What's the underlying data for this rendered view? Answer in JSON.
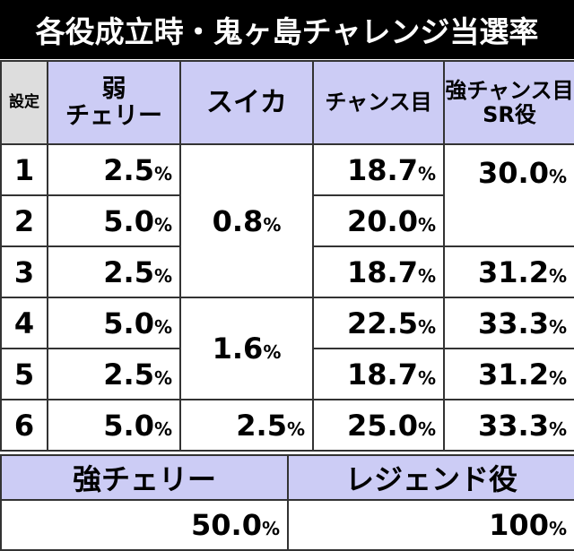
{
  "title": "各役成立時・鬼ヶ島チャレンジ当選率",
  "headers": {
    "setting": "設定",
    "weak_cherry_1": "弱",
    "weak_cherry_2": "チェリー",
    "suika": "スイカ",
    "chance_me": "チャンス目",
    "strong_chance_1": "強チャンス目",
    "strong_chance_2": "SR役"
  },
  "pct": "%",
  "rows": [
    {
      "setting": "1",
      "weak_cherry": "2.5",
      "chance_me": "18.7"
    },
    {
      "setting": "2",
      "weak_cherry": "5.0",
      "chance_me": "20.0"
    },
    {
      "setting": "3",
      "weak_cherry": "2.5",
      "chance_me": "18.7"
    },
    {
      "setting": "4",
      "weak_cherry": "5.0",
      "chance_me": "22.5"
    },
    {
      "setting": "5",
      "weak_cherry": "2.5",
      "chance_me": "18.7"
    },
    {
      "setting": "6",
      "weak_cherry": "5.0",
      "chance_me": "25.0"
    }
  ],
  "suika_groups": [
    "0.8",
    "1.6",
    "2.5"
  ],
  "strong_chance_values": [
    "30.0",
    "31.2",
    "33.3",
    "31.2",
    "33.3"
  ],
  "bottom": {
    "strong_cherry_label": "強チェリー",
    "strong_cherry_value": "50.0",
    "legend_label": "レジェンド役",
    "legend_value": "100"
  }
}
